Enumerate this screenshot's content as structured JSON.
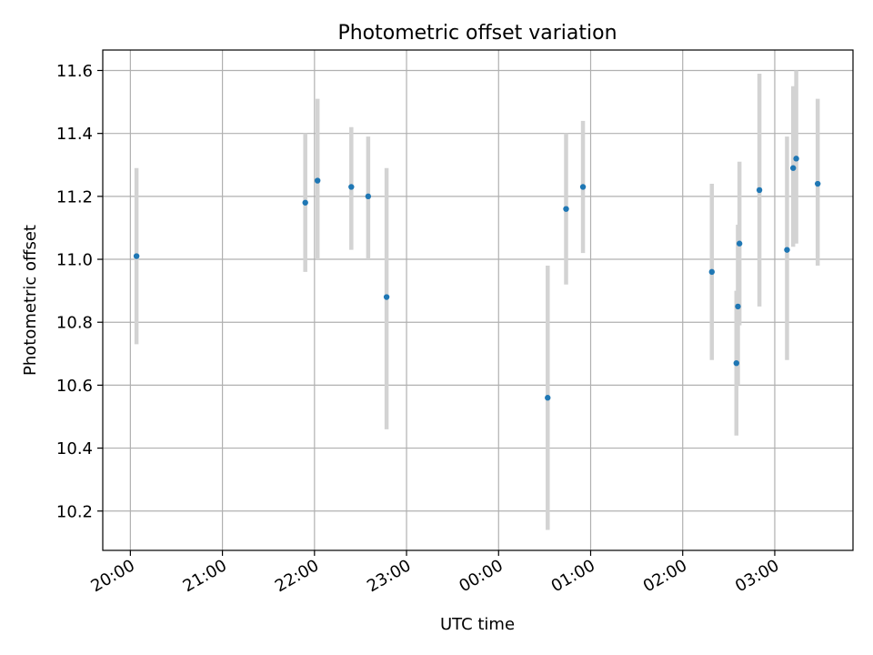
{
  "chart_data": {
    "type": "scatter",
    "title": "Photometric offset variation",
    "xlabel": "UTC time",
    "ylabel": "Photometric offset",
    "x_ticks": [
      "20:00",
      "21:00",
      "22:00",
      "23:00",
      "00:00",
      "01:00",
      "02:00",
      "03:00"
    ],
    "y_ticks": [
      "10.2",
      "10.4",
      "10.6",
      "10.8",
      "11.0",
      "11.2",
      "11.4",
      "11.6"
    ],
    "xlim": [
      "19:42",
      "03:51"
    ],
    "ylim": [
      10.075,
      11.665
    ],
    "grid": true,
    "marker_color": "#1f77b4",
    "errorbar_color": "#d3d3d3",
    "points": [
      {
        "time": "20:04",
        "y": 11.01,
        "ylow": 10.73,
        "yhigh": 11.29
      },
      {
        "time": "21:54",
        "y": 11.18,
        "ylow": 10.96,
        "yhigh": 11.4
      },
      {
        "time": "22:02",
        "y": 11.25,
        "ylow": 11.0,
        "yhigh": 11.51
      },
      {
        "time": "22:24",
        "y": 11.23,
        "ylow": 11.03,
        "yhigh": 11.42
      },
      {
        "time": "22:35",
        "y": 11.2,
        "ylow": 11.0,
        "yhigh": 11.39
      },
      {
        "time": "22:47",
        "y": 10.88,
        "ylow": 10.46,
        "yhigh": 11.29
      },
      {
        "time": "00:32",
        "y": 10.56,
        "ylow": 10.14,
        "yhigh": 10.98
      },
      {
        "time": "00:44",
        "y": 11.16,
        "ylow": 10.92,
        "yhigh": 11.4
      },
      {
        "time": "00:55",
        "y": 11.23,
        "ylow": 11.02,
        "yhigh": 11.44
      },
      {
        "time": "02:19",
        "y": 10.96,
        "ylow": 10.68,
        "yhigh": 11.24
      },
      {
        "time": "02:35",
        "y": 10.67,
        "ylow": 10.44,
        "yhigh": 10.9
      },
      {
        "time": "02:36",
        "y": 10.85,
        "ylow": 10.6,
        "yhigh": 11.11
      },
      {
        "time": "02:37",
        "y": 11.05,
        "ylow": 10.79,
        "yhigh": 11.31
      },
      {
        "time": "02:50",
        "y": 11.22,
        "ylow": 10.85,
        "yhigh": 11.59
      },
      {
        "time": "03:08",
        "y": 11.03,
        "ylow": 10.68,
        "yhigh": 11.39
      },
      {
        "time": "03:12",
        "y": 11.29,
        "ylow": 11.04,
        "yhigh": 11.55
      },
      {
        "time": "03:14",
        "y": 11.32,
        "ylow": 11.05,
        "yhigh": 11.6
      },
      {
        "time": "03:28",
        "y": 11.24,
        "ylow": 10.98,
        "yhigh": 11.51
      }
    ]
  }
}
